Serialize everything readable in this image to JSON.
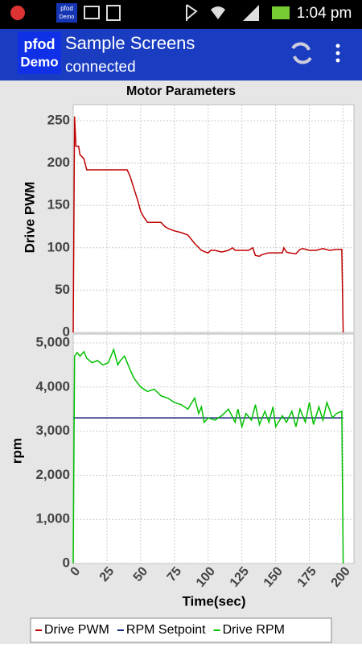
{
  "status_bar": {
    "icon_text": [
      "pfod",
      "Demo"
    ],
    "time": "1:04 pm"
  },
  "app_bar": {
    "logo": [
      "pfod",
      "Demo"
    ],
    "title": "Sample Screens",
    "subtitle": "connected"
  },
  "legend_position": "bottom",
  "chart_data": [
    {
      "type": "line",
      "title": "Motor Parameters",
      "y_label": "Drive PWM",
      "grid": true,
      "xlim": [
        0,
        208
      ],
      "ylim": [
        0,
        269
      ],
      "yticks": [
        0,
        50,
        100,
        150,
        200,
        250
      ],
      "series": [
        {
          "name": "Drive PWM",
          "color": "#c00000",
          "x": [
            0,
            1,
            2,
            4,
            5,
            8,
            10,
            20,
            30,
            40,
            42,
            45,
            48,
            50,
            52,
            55,
            60,
            65,
            68,
            70,
            75,
            80,
            85,
            90,
            95,
            98,
            100,
            102,
            105,
            110,
            115,
            118,
            120,
            125,
            130,
            133,
            135,
            138,
            140,
            145,
            150,
            155,
            156,
            158,
            160,
            165,
            168,
            170,
            175,
            180,
            185,
            190,
            195,
            199,
            200
          ],
          "values": [
            0,
            255,
            220,
            220,
            210,
            205,
            192,
            192,
            192,
            192,
            185,
            170,
            155,
            143,
            137,
            130,
            130,
            130,
            125,
            123,
            120,
            118,
            115,
            105,
            97,
            95,
            94,
            97,
            97,
            95,
            97,
            100,
            97,
            97,
            97,
            100,
            91,
            90,
            92,
            94,
            94,
            94,
            100,
            95,
            94,
            93,
            98,
            99,
            97,
            97,
            99,
            97,
            98,
            98,
            0
          ]
        }
      ]
    },
    {
      "type": "line",
      "x_label": "Time(sec)",
      "y_label": "rpm",
      "grid": true,
      "xlim": [
        0,
        208
      ],
      "ylim": [
        0,
        5200
      ],
      "xticks": [
        0,
        25,
        50,
        75,
        100,
        125,
        150,
        175,
        200
      ],
      "yticks": [
        0,
        {
          "value": 1000,
          "label": "1,000"
        },
        {
          "value": 2000,
          "label": "2,000"
        },
        {
          "value": 3000,
          "label": "3,000"
        },
        {
          "value": 4000,
          "label": "4,000"
        },
        {
          "value": 5000,
          "label": "5,000"
        }
      ],
      "series": [
        {
          "name": "RPM Setpoint",
          "color": "#1a237e",
          "x": [
            0,
            200
          ],
          "values": [
            3300,
            3300
          ]
        },
        {
          "name": "Drive RPM",
          "color": "#00c000",
          "x": [
            0,
            1,
            3,
            5,
            8,
            10,
            14,
            18,
            22,
            26,
            30,
            33,
            35,
            38,
            42,
            45,
            50,
            55,
            60,
            65,
            70,
            75,
            80,
            85,
            90,
            93,
            95,
            97,
            100,
            105,
            110,
            115,
            120,
            122,
            125,
            128,
            132,
            135,
            138,
            142,
            145,
            148,
            150,
            155,
            158,
            162,
            165,
            168,
            172,
            175,
            178,
            182,
            185,
            188,
            192,
            195,
            199,
            200
          ],
          "values": [
            0,
            4700,
            4780,
            4700,
            4800,
            4650,
            4550,
            4600,
            4500,
            4550,
            4850,
            4500,
            4600,
            4700,
            4400,
            4200,
            4000,
            3900,
            3950,
            3800,
            3750,
            3650,
            3600,
            3500,
            3750,
            3400,
            3550,
            3200,
            3300,
            3250,
            3350,
            3500,
            3200,
            3500,
            3100,
            3400,
            3250,
            3600,
            3150,
            3450,
            3200,
            3550,
            3100,
            3350,
            3200,
            3450,
            3100,
            3500,
            3200,
            3650,
            3150,
            3550,
            3250,
            3650,
            3300,
            3400,
            3450,
            0
          ]
        }
      ]
    }
  ]
}
